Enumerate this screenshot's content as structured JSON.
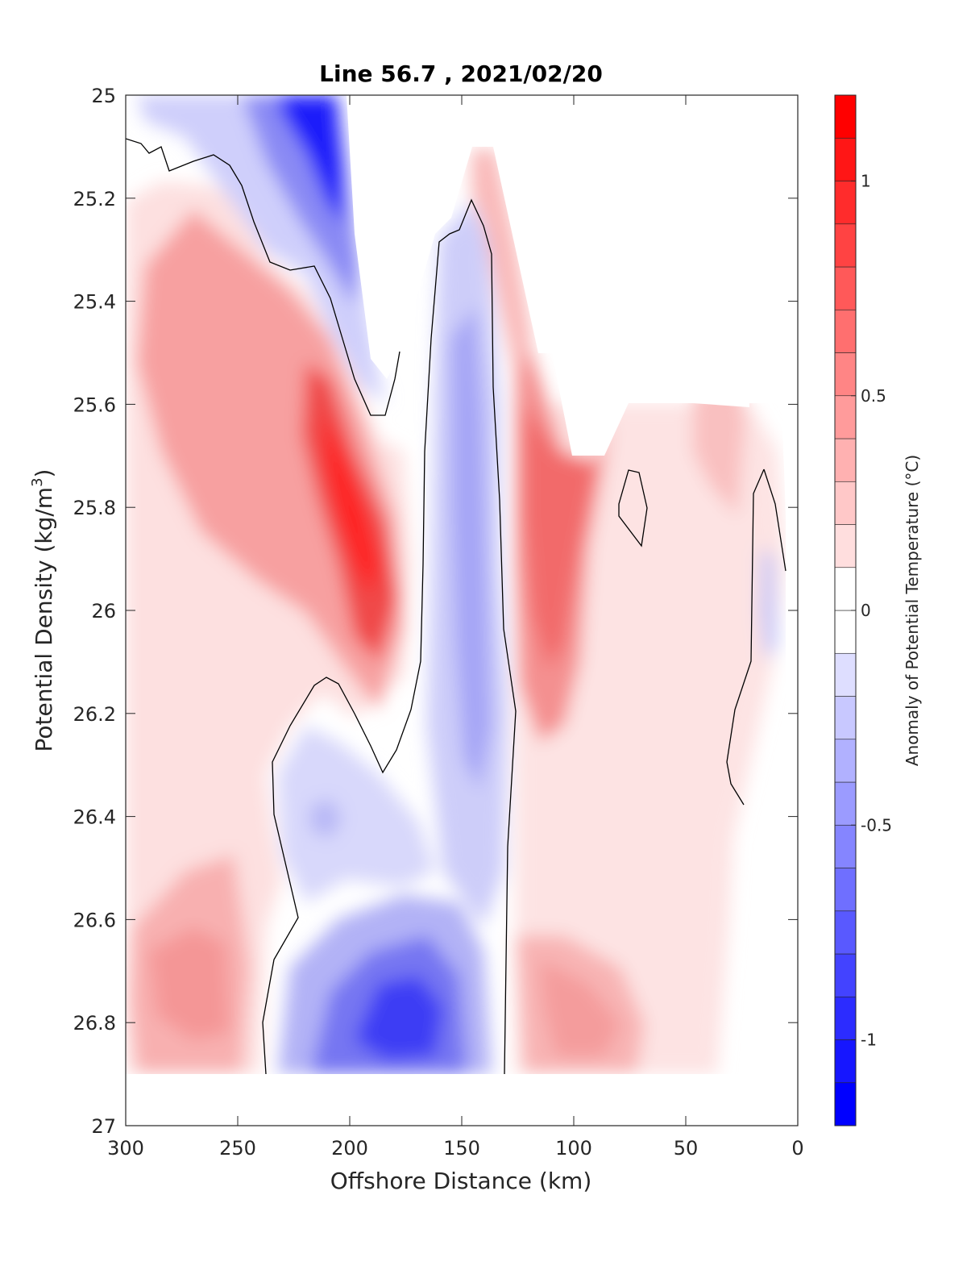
{
  "chart_data": {
    "type": "contourf",
    "title": "Line 56.7 , 2021/02/20",
    "xlabel": "Offshore Distance (km)",
    "ylabel": "Potential Density (kg/m",
    "ylabel_sup": "3",
    "ylabel_end": ")",
    "xlim": [
      300,
      0
    ],
    "ylim": [
      25,
      27
    ],
    "y_reversed": true,
    "xticks": [
      300,
      250,
      200,
      150,
      100,
      50,
      0
    ],
    "xtick_labels": [
      "300",
      "250",
      "200",
      "150",
      "100",
      "50",
      "0"
    ],
    "yticks": [
      25,
      25.2,
      25.4,
      25.6,
      25.8,
      26,
      26.2,
      26.4,
      26.6,
      26.8,
      27
    ],
    "ytick_labels": [
      "25",
      "25.2",
      "25.4",
      "25.6",
      "25.8",
      "26",
      "26.2",
      "26.4",
      "26.6",
      "26.8",
      "27"
    ],
    "colorbar": {
      "label": "Anomaly of Potential Temperature (°C)",
      "range": [
        -1.2,
        1.2
      ],
      "levels": 24,
      "ticks": [
        1,
        0.5,
        0,
        -0.5,
        -1
      ],
      "tick_labels": [
        "1",
        "0.5",
        "0",
        "-0.5",
        "-1"
      ],
      "colormap": "blue-white-red"
    },
    "features": [
      {
        "kind": "cold",
        "center": [
          207,
          25.05
        ],
        "anomaly": -1.1
      },
      {
        "kind": "warm",
        "center": [
          268,
          25.45
        ],
        "anomaly": 0.55
      },
      {
        "kind": "warm",
        "center": [
          193,
          25.9
        ],
        "anomaly": 1.1
      },
      {
        "kind": "cold",
        "center": [
          147,
          25.95
        ],
        "anomaly": -0.4
      },
      {
        "kind": "warm",
        "center": [
          105,
          25.95
        ],
        "anomaly": 0.75
      },
      {
        "kind": "warm",
        "center": [
          265,
          26.72
        ],
        "anomaly": 0.45
      },
      {
        "kind": "cold",
        "center": [
          176,
          26.8
        ],
        "anomaly": -0.8
      },
      {
        "kind": "warm",
        "center": [
          110,
          26.75
        ],
        "anomaly": 0.4
      },
      {
        "kind": "cold",
        "center": [
          213,
          26.4
        ],
        "anomaly": -0.25
      },
      {
        "kind": "warm",
        "center": [
          35,
          25.6
        ],
        "anomaly": 0.35
      },
      {
        "kind": "cold",
        "center": [
          13,
          26
        ],
        "anomaly": -0.15
      }
    ],
    "grid": false
  },
  "colors": {
    "cold": "#0000ff",
    "warm": "#ff0000",
    "neutral": "#ffffff",
    "contour": "#000000"
  }
}
